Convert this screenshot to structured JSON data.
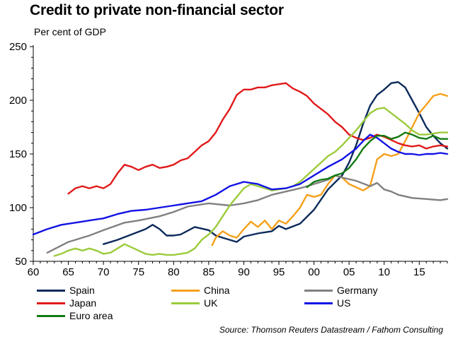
{
  "title": "Credit to private non-financial sector",
  "subtitle": "Per cent of GDP",
  "source": "Source: Thomson Reuters Datastream / Fathom Consulting",
  "chart_data": {
    "type": "line",
    "title": "Credit to private non-financial sector",
    "ylabel": "Per cent of GDP",
    "xlabel": "",
    "xlim": [
      1960,
      2019
    ],
    "ylim": [
      50,
      250
    ],
    "y_ticks": [
      50,
      100,
      150,
      200,
      250
    ],
    "x_ticks": [
      1960,
      1965,
      1970,
      1975,
      1980,
      1985,
      1990,
      1995,
      2000,
      2005,
      2010,
      2015
    ],
    "x_tick_labels": [
      "60",
      "65",
      "70",
      "75",
      "80",
      "85",
      "90",
      "95",
      "00",
      "05",
      "10",
      "15"
    ],
    "y_tick_labels": [
      "50",
      "100",
      "150",
      "200",
      "250"
    ],
    "grid": false,
    "legend_position": "bottom",
    "series": [
      {
        "name": "Spain",
        "color": "#0b2a5b",
        "x": [
          1970,
          1972,
          1974,
          1976,
          1977,
          1978,
          1979,
          1980,
          1981,
          1983,
          1985,
          1986,
          1987,
          1988,
          1989,
          1990,
          1992,
          1994,
          1995,
          1996,
          1998,
          2000,
          2002,
          2004,
          2005,
          2006,
          2007,
          2008,
          2009,
          2010,
          2011,
          2012,
          2013,
          2014,
          2015,
          2016,
          2017,
          2018,
          2019
        ],
        "y": [
          66,
          70,
          75,
          80,
          84,
          80,
          74,
          74,
          75,
          82,
          79,
          74,
          72,
          70,
          68,
          73,
          76,
          78,
          83,
          80,
          85,
          98,
          117,
          130,
          142,
          158,
          178,
          195,
          205,
          210,
          216,
          217,
          212,
          200,
          188,
          175,
          167,
          160,
          155
        ]
      },
      {
        "name": "China",
        "color": "#f5a01a",
        "x": [
          1985.5,
          1986,
          1987,
          1988,
          1989,
          1990,
          1991,
          1992,
          1993,
          1994,
          1995,
          1996,
          1997,
          1998,
          1999,
          2000,
          2001,
          2002,
          2003,
          2004,
          2005,
          2006,
          2007,
          2008,
          2009,
          2010,
          2011,
          2012,
          2013,
          2014,
          2015,
          2016,
          2017,
          2018,
          2019
        ],
        "y": [
          65,
          72,
          78,
          74,
          72,
          80,
          87,
          82,
          88,
          80,
          88,
          85,
          92,
          100,
          112,
          110,
          112,
          122,
          130,
          128,
          122,
          119,
          116,
          120,
          145,
          150,
          148,
          150,
          162,
          175,
          188,
          196,
          204,
          206,
          204
        ]
      },
      {
        "name": "Germany",
        "color": "#808080",
        "x": [
          1962,
          1965,
          1968,
          1970,
          1973,
          1975,
          1978,
          1980,
          1982,
          1985,
          1988,
          1990,
          1992,
          1994,
          1996,
          1998,
          2000,
          2002,
          2003,
          2004,
          2006,
          2008,
          2009,
          2010,
          2011,
          2012,
          2014,
          2016,
          2018,
          2019
        ],
        "y": [
          58,
          68,
          74,
          79,
          86,
          88,
          92,
          96,
          101,
          104,
          102,
          104,
          107,
          112,
          115,
          118,
          122,
          126,
          130,
          128,
          125,
          120,
          123,
          117,
          115,
          112,
          109,
          108,
          107,
          108
        ]
      },
      {
        "name": "Japan",
        "color": "#e11a1a",
        "x": [
          1965,
          1966,
          1967,
          1968,
          1969,
          1970,
          1971,
          1972,
          1973,
          1974,
          1975,
          1976,
          1977,
          1978,
          1979,
          1980,
          1981,
          1982,
          1983,
          1984,
          1985,
          1986,
          1987,
          1988,
          1989,
          1990,
          1991,
          1992,
          1993,
          1994,
          1995,
          1996,
          1997,
          1998,
          1999,
          2000,
          2001,
          2002,
          2003,
          2004,
          2005,
          2006,
          2007,
          2008,
          2009,
          2010,
          2011,
          2012,
          2013,
          2014,
          2015,
          2016,
          2017,
          2018,
          2019
        ],
        "y": [
          113,
          118,
          120,
          118,
          120,
          118,
          122,
          132,
          140,
          138,
          135,
          138,
          140,
          137,
          138,
          140,
          144,
          146,
          152,
          158,
          162,
          170,
          182,
          192,
          205,
          210,
          210,
          212,
          212,
          214,
          215,
          216,
          211,
          208,
          204,
          197,
          192,
          187,
          180,
          175,
          168,
          165,
          163,
          165,
          168,
          166,
          163,
          160,
          158,
          157,
          158,
          155,
          157,
          158,
          157
        ]
      },
      {
        "name": "UK",
        "color": "#9bcb3b",
        "x": [
          1963,
          1964,
          1965,
          1966,
          1967,
          1968,
          1969,
          1970,
          1971,
          1972,
          1973,
          1974,
          1975,
          1976,
          1977,
          1978,
          1979,
          1980,
          1981,
          1982,
          1983,
          1984,
          1985,
          1986,
          1987,
          1988,
          1989,
          1990,
          1991,
          1992,
          1993,
          1994,
          1995,
          1996,
          1997,
          1998,
          1999,
          2000,
          2001,
          2002,
          2003,
          2004,
          2005,
          2006,
          2007,
          2008,
          2009,
          2010,
          2011,
          2012,
          2013,
          2014,
          2015,
          2016,
          2017,
          2018,
          2019
        ],
        "y": [
          55,
          57,
          60,
          62,
          60,
          62,
          60,
          57,
          58,
          62,
          66,
          63,
          60,
          57,
          56,
          57,
          56,
          56,
          57,
          58,
          62,
          70,
          75,
          82,
          92,
          102,
          110,
          118,
          122,
          120,
          118,
          116,
          117,
          118,
          120,
          124,
          130,
          136,
          142,
          148,
          152,
          158,
          165,
          172,
          180,
          188,
          192,
          193,
          188,
          183,
          178,
          172,
          168,
          168,
          169,
          170,
          170
        ]
      },
      {
        "name": "US",
        "color": "#1212e6",
        "x": [
          1960,
          1962,
          1964,
          1966,
          1968,
          1970,
          1972,
          1974,
          1976,
          1978,
          1980,
          1982,
          1984,
          1986,
          1988,
          1990,
          1992,
          1994,
          1996,
          1998,
          2000,
          2002,
          2004,
          2006,
          2007,
          2008,
          2009,
          2010,
          2011,
          2012,
          2013,
          2014,
          2015,
          2016,
          2017,
          2018,
          2019
        ],
        "y": [
          75,
          80,
          84,
          86,
          88,
          90,
          94,
          97,
          98,
          100,
          102,
          104,
          106,
          112,
          120,
          124,
          122,
          117,
          118,
          122,
          130,
          138,
          145,
          155,
          162,
          168,
          165,
          160,
          155,
          152,
          150,
          150,
          149,
          150,
          150,
          151,
          150
        ]
      },
      {
        "name": "Euro area",
        "color": "#127a12",
        "x": [
          1999,
          2000,
          2001,
          2002,
          2003,
          2004,
          2005,
          2006,
          2007,
          2008,
          2009,
          2010,
          2011,
          2012,
          2013,
          2014,
          2015,
          2016,
          2017,
          2018,
          2019
        ],
        "y": [
          119,
          124,
          126,
          127,
          130,
          132,
          137,
          145,
          155,
          162,
          167,
          167,
          164,
          166,
          170,
          168,
          165,
          164,
          167,
          164,
          164
        ]
      }
    ]
  }
}
